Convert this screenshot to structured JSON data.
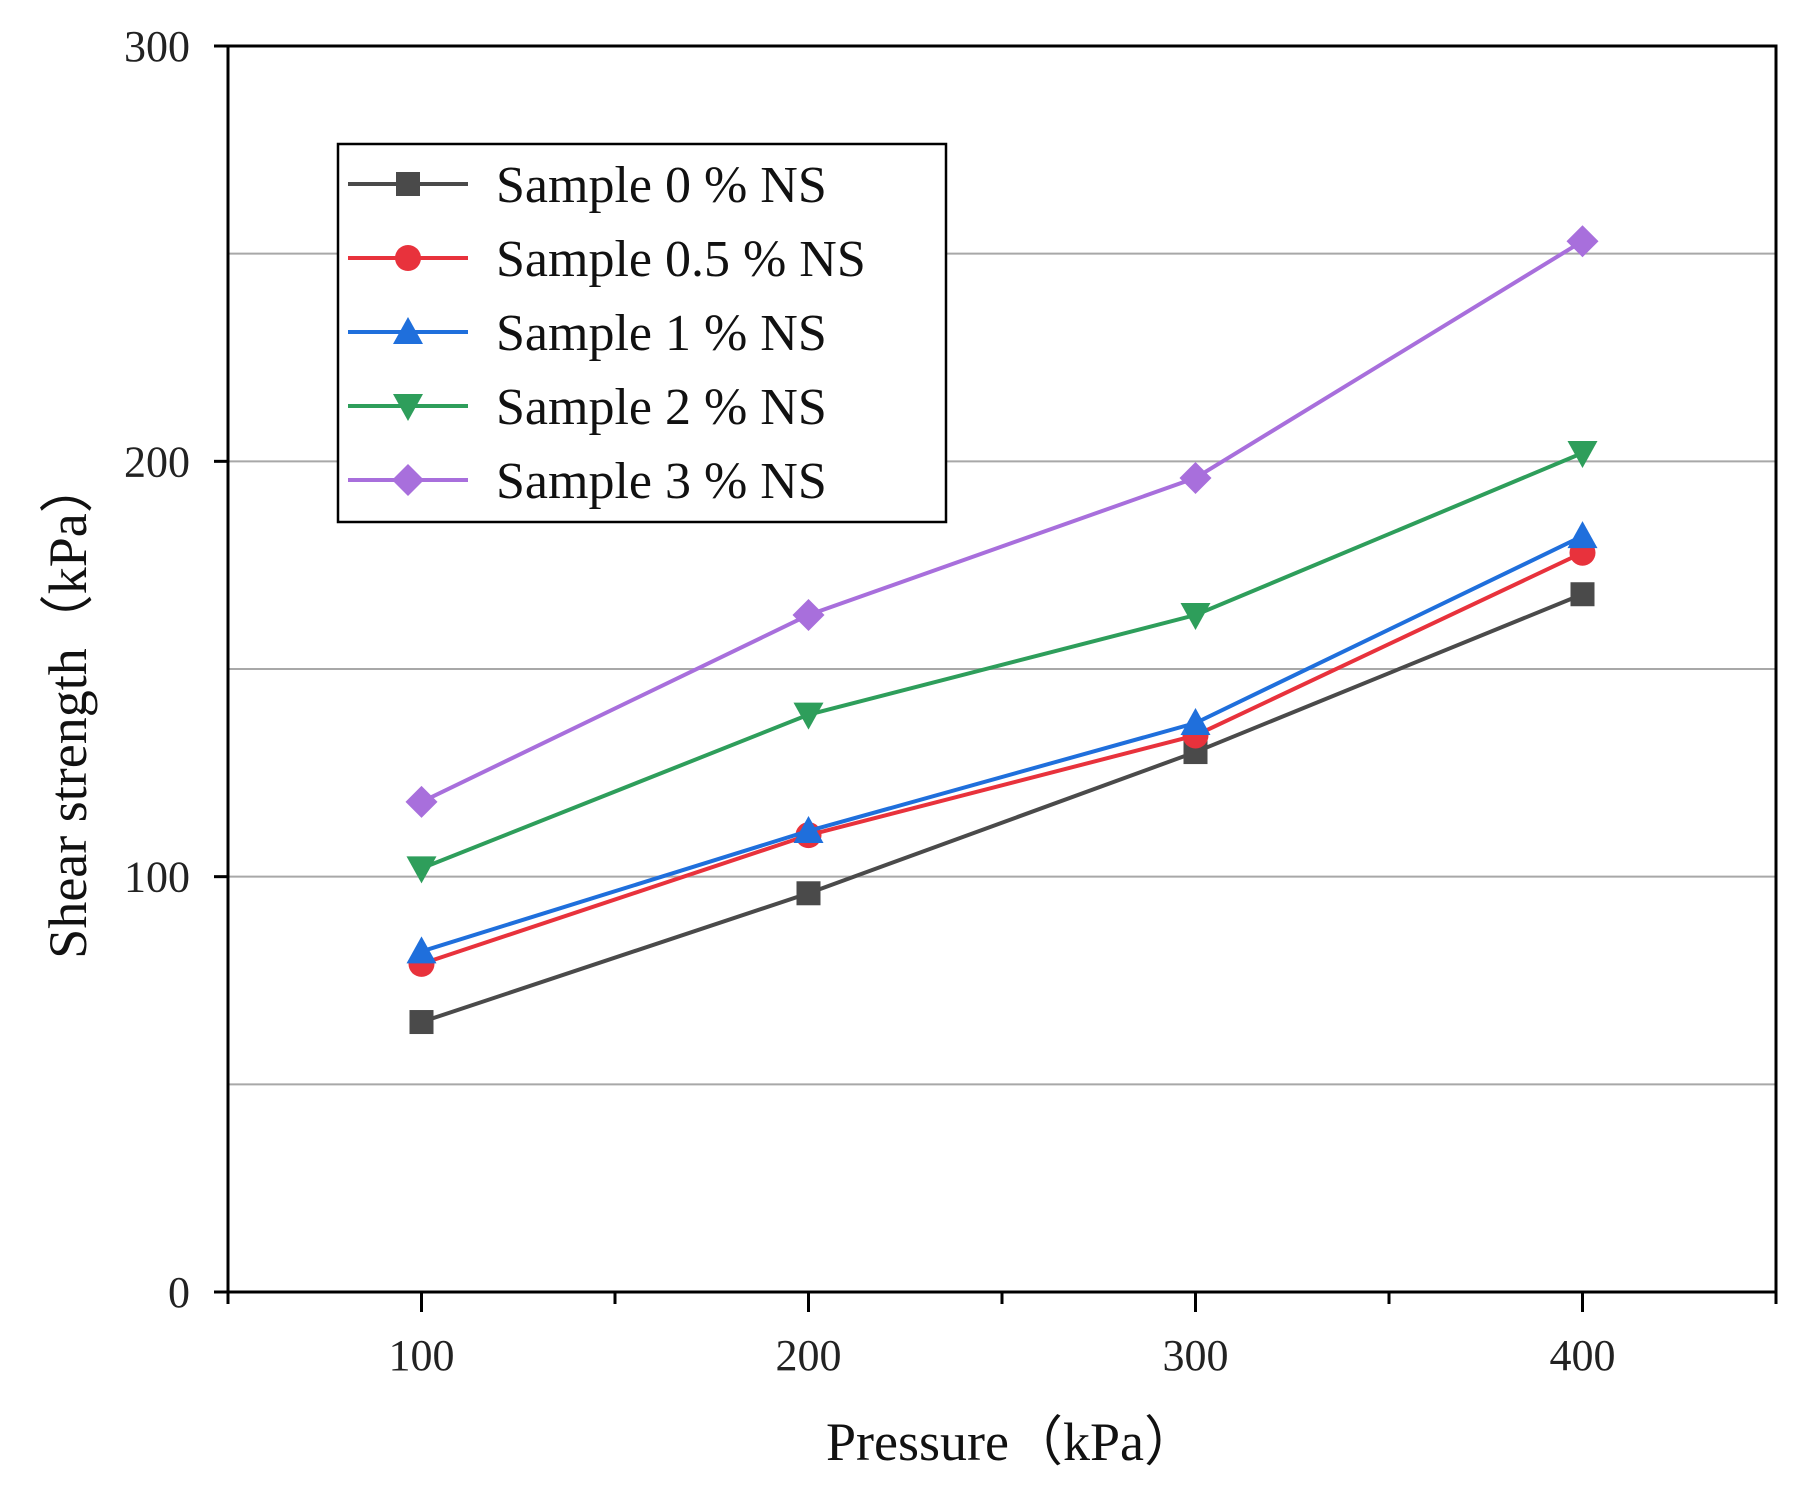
{
  "chart_data": {
    "type": "line",
    "title": "",
    "xlabel": "Pressure（kPa）",
    "ylabel": "Shear strength（kPa）",
    "x": [
      100,
      200,
      300,
      400
    ],
    "xlim": [
      50,
      450
    ],
    "ylim": [
      0,
      300
    ],
    "x_ticks": [
      100,
      200,
      300,
      400
    ],
    "x_tick_labels": [
      "100",
      "200",
      "300",
      "400"
    ],
    "x_minor_ticks": [
      50,
      150,
      250,
      350,
      450
    ],
    "y_ticks": [
      0,
      100,
      200,
      300
    ],
    "y_tick_labels": [
      "0",
      "100",
      "200",
      "300"
    ],
    "y_gridlines": [
      50,
      100,
      150,
      200,
      250
    ],
    "grid": "horizontal",
    "legend_position": "top-left",
    "series": [
      {
        "name": "Sample  0 % NS",
        "marker": "square",
        "color": "#4a4a4a",
        "values": [
          65,
          96,
          130,
          168
        ]
      },
      {
        "name": "Sample  0.5 % NS",
        "marker": "circle",
        "color": "#e8323c",
        "values": [
          79,
          110,
          134,
          178
        ]
      },
      {
        "name": "Sample  1 % NS",
        "marker": "triangle-up",
        "color": "#1f6fdc",
        "values": [
          82,
          111,
          137,
          182
        ]
      },
      {
        "name": "Sample  2 % NS",
        "marker": "triangle-down",
        "color": "#2e9e5b",
        "values": [
          102,
          139,
          163,
          202
        ]
      },
      {
        "name": "Sample  3 % NS",
        "marker": "diamond",
        "color": "#a86fdc",
        "values": [
          118,
          163,
          196,
          253
        ]
      }
    ]
  }
}
